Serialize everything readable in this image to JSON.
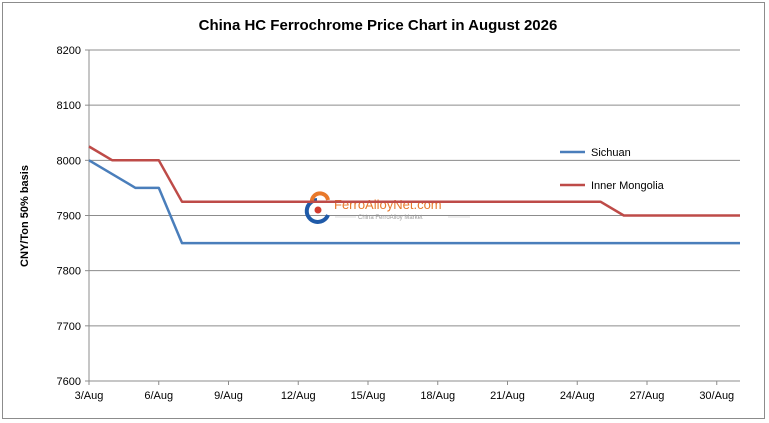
{
  "chart_data": {
    "type": "line",
    "title": "China HC Ferrochrome Price Chart in August 2026",
    "ylabel": "CNY/Ton 50% basis",
    "xlabel": "",
    "ylim": [
      7600,
      8200
    ],
    "yticks": [
      7600,
      7700,
      7800,
      7900,
      8000,
      8100,
      8200
    ],
    "xlim": [
      3,
      31
    ],
    "xticks": [
      {
        "x": 3,
        "label": "3/Aug"
      },
      {
        "x": 6,
        "label": "6/Aug"
      },
      {
        "x": 9,
        "label": "9/Aug"
      },
      {
        "x": 12,
        "label": "12/Aug"
      },
      {
        "x": 15,
        "label": "15/Aug"
      },
      {
        "x": 18,
        "label": "18/Aug"
      },
      {
        "x": 21,
        "label": "21/Aug"
      },
      {
        "x": 24,
        "label": "24/Aug"
      },
      {
        "x": 27,
        "label": "27/Aug"
      },
      {
        "x": 30,
        "label": "30/Aug"
      }
    ],
    "grid": "horizontal",
    "legend_position": "right",
    "series": [
      {
        "name": "Sichuan",
        "color": "#4a7ebb",
        "points": [
          [
            3,
            8000
          ],
          [
            5,
            7950
          ],
          [
            6,
            7950
          ],
          [
            7,
            7850
          ],
          [
            31,
            7850
          ]
        ]
      },
      {
        "name": "Inner Mongolia",
        "color": "#be4b48",
        "points": [
          [
            3,
            8025
          ],
          [
            4,
            8000
          ],
          [
            6,
            8000
          ],
          [
            7,
            7925
          ],
          [
            25,
            7925
          ],
          [
            26,
            7900
          ],
          [
            31,
            7900
          ]
        ]
      }
    ]
  },
  "watermark": {
    "brand": "FerroAlloyNet.com",
    "tagline": "China FerroAlloy Market"
  }
}
